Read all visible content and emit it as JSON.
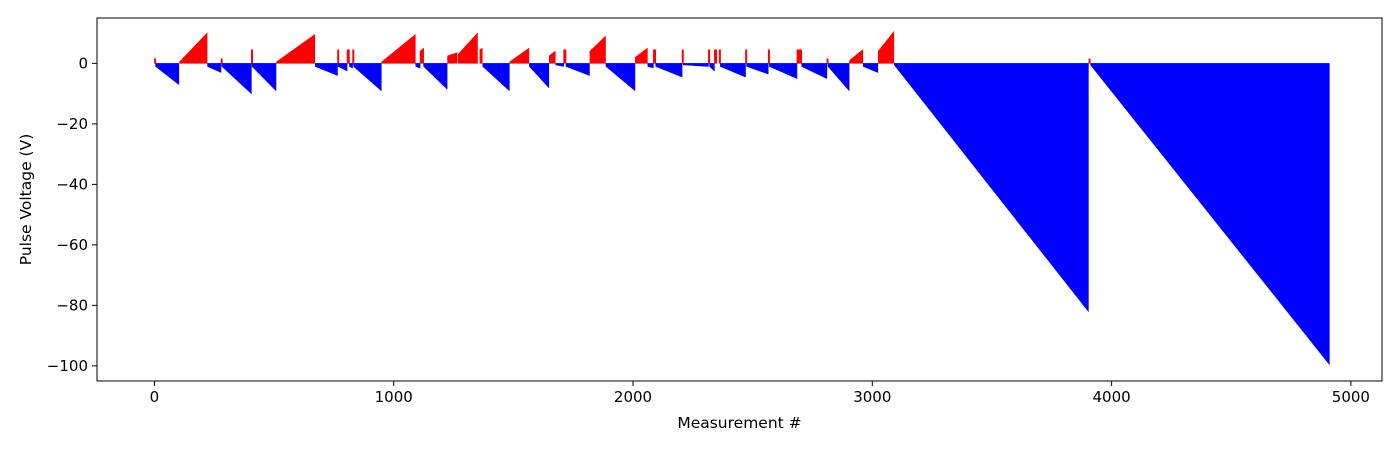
{
  "chart_data": {
    "type": "bar",
    "title": "",
    "xlabel": "Measurement #",
    "ylabel": "Pulse Voltage (V)",
    "xlim": [
      -240,
      5130
    ],
    "ylim": [
      -105,
      15
    ],
    "xticks": [
      0,
      1000,
      2000,
      3000,
      4000,
      5000
    ],
    "yticks": [
      0,
      -20,
      -40,
      -60,
      -80,
      -100
    ],
    "grid": false,
    "legend": "none",
    "colors": {
      "positive": "#ff0000",
      "negative": "#0000ff"
    },
    "series": [
      {
        "color": "#ff0000",
        "segments": [
          {
            "x_start": 0,
            "x_end": 5,
            "y_start": 1.5,
            "y_end": 1.5
          },
          {
            "x_start": 105,
            "x_end": 220,
            "y_start": 0.5,
            "y_end": 10
          },
          {
            "x_start": 278,
            "x_end": 282,
            "y_start": 1.5,
            "y_end": 1.5
          },
          {
            "x_start": 405,
            "x_end": 408,
            "y_start": 4.5,
            "y_end": 4.5
          },
          {
            "x_start": 510,
            "x_end": 670,
            "y_start": 0.5,
            "y_end": 9.5
          },
          {
            "x_start": 765,
            "x_end": 768,
            "y_start": 4.5,
            "y_end": 4.5
          },
          {
            "x_start": 805,
            "x_end": 815,
            "y_start": 4.5,
            "y_end": 4.5
          },
          {
            "x_start": 828,
            "x_end": 832,
            "y_start": 4.5,
            "y_end": 4.5
          },
          {
            "x_start": 950,
            "x_end": 1090,
            "y_start": 0.5,
            "y_end": 9.5
          },
          {
            "x_start": 1110,
            "x_end": 1125,
            "y_start": 4,
            "y_end": 5
          },
          {
            "x_start": 1225,
            "x_end": 1265,
            "y_start": 2.5,
            "y_end": 3.5
          },
          {
            "x_start": 1270,
            "x_end": 1350,
            "y_start": 3,
            "y_end": 10
          },
          {
            "x_start": 1360,
            "x_end": 1370,
            "y_start": 4.5,
            "y_end": 5
          },
          {
            "x_start": 1485,
            "x_end": 1565,
            "y_start": 0.5,
            "y_end": 5
          },
          {
            "x_start": 1650,
            "x_end": 1675,
            "y_start": 2.5,
            "y_end": 4
          },
          {
            "x_start": 1710,
            "x_end": 1720,
            "y_start": 4.5,
            "y_end": 4.5
          },
          {
            "x_start": 1820,
            "x_end": 1885,
            "y_start": 4,
            "y_end": 9
          },
          {
            "x_start": 2010,
            "x_end": 2060,
            "y_start": 2,
            "y_end": 5
          },
          {
            "x_start": 2085,
            "x_end": 2095,
            "y_start": 4.5,
            "y_end": 4.5
          },
          {
            "x_start": 2205,
            "x_end": 2210,
            "y_start": 4.5,
            "y_end": 4.5
          },
          {
            "x_start": 2315,
            "x_end": 2320,
            "y_start": 4.5,
            "y_end": 4.5
          },
          {
            "x_start": 2340,
            "x_end": 2350,
            "y_start": 4.5,
            "y_end": 4.5
          },
          {
            "x_start": 2360,
            "x_end": 2365,
            "y_start": 4.5,
            "y_end": 4.5
          },
          {
            "x_start": 2470,
            "x_end": 2475,
            "y_start": 4.5,
            "y_end": 4.5
          },
          {
            "x_start": 2565,
            "x_end": 2570,
            "y_start": 4.5,
            "y_end": 4.5
          },
          {
            "x_start": 2685,
            "x_end": 2705,
            "y_start": 4.5,
            "y_end": 4.5
          },
          {
            "x_start": 2810,
            "x_end": 2815,
            "y_start": 1.5,
            "y_end": 1.5
          },
          {
            "x_start": 2905,
            "x_end": 2960,
            "y_start": 1,
            "y_end": 4.5
          },
          {
            "x_start": 3025,
            "x_end": 3090,
            "y_start": 4,
            "y_end": 10.5
          },
          {
            "x_start": 3905,
            "x_end": 3910,
            "y_start": 1.5,
            "y_end": 1.5
          }
        ]
      },
      {
        "color": "#0000ff",
        "segments": [
          {
            "x_start": 5,
            "x_end": 102,
            "y_start": -1,
            "y_end": -7
          },
          {
            "x_start": 222,
            "x_end": 278,
            "y_start": -1,
            "y_end": -3
          },
          {
            "x_start": 282,
            "x_end": 405,
            "y_start": -1,
            "y_end": -10
          },
          {
            "x_start": 408,
            "x_end": 508,
            "y_start": -1,
            "y_end": -9
          },
          {
            "x_start": 672,
            "x_end": 765,
            "y_start": -1,
            "y_end": -4
          },
          {
            "x_start": 768,
            "x_end": 805,
            "y_start": -1,
            "y_end": -2.5
          },
          {
            "x_start": 815,
            "x_end": 828,
            "y_start": -1,
            "y_end": -1.5
          },
          {
            "x_start": 832,
            "x_end": 948,
            "y_start": -1,
            "y_end": -9
          },
          {
            "x_start": 1092,
            "x_end": 1110,
            "y_start": -1,
            "y_end": -1.5
          },
          {
            "x_start": 1125,
            "x_end": 1223,
            "y_start": -1,
            "y_end": -8.5
          },
          {
            "x_start": 1372,
            "x_end": 1483,
            "y_start": -1,
            "y_end": -9
          },
          {
            "x_start": 1567,
            "x_end": 1648,
            "y_start": -1,
            "y_end": -8
          },
          {
            "x_start": 1677,
            "x_end": 1710,
            "y_start": -0.5,
            "y_end": -1
          },
          {
            "x_start": 1720,
            "x_end": 1818,
            "y_start": -1,
            "y_end": -4
          },
          {
            "x_start": 1887,
            "x_end": 2008,
            "y_start": -1,
            "y_end": -9
          },
          {
            "x_start": 2062,
            "x_end": 2085,
            "y_start": -1,
            "y_end": -1.5
          },
          {
            "x_start": 2095,
            "x_end": 2205,
            "y_start": -1,
            "y_end": -4.5
          },
          {
            "x_start": 2210,
            "x_end": 2315,
            "y_start": -0.5,
            "y_end": -1
          },
          {
            "x_start": 2320,
            "x_end": 2340,
            "y_start": -1,
            "y_end": -2.5
          },
          {
            "x_start": 2365,
            "x_end": 2470,
            "y_start": -1,
            "y_end": -4.5
          },
          {
            "x_start": 2475,
            "x_end": 2565,
            "y_start": -1,
            "y_end": -3.5
          },
          {
            "x_start": 2570,
            "x_end": 2685,
            "y_start": -1,
            "y_end": -5
          },
          {
            "x_start": 2705,
            "x_end": 2810,
            "y_start": -1,
            "y_end": -5
          },
          {
            "x_start": 2815,
            "x_end": 2903,
            "y_start": -1,
            "y_end": -9
          },
          {
            "x_start": 2962,
            "x_end": 3023,
            "y_start": -1,
            "y_end": -3
          },
          {
            "x_start": 3092,
            "x_end": 3903,
            "y_start": -0.5,
            "y_end": -82
          },
          {
            "x_start": 3912,
            "x_end": 4910,
            "y_start": -0.5,
            "y_end": -99.5
          }
        ]
      }
    ]
  }
}
